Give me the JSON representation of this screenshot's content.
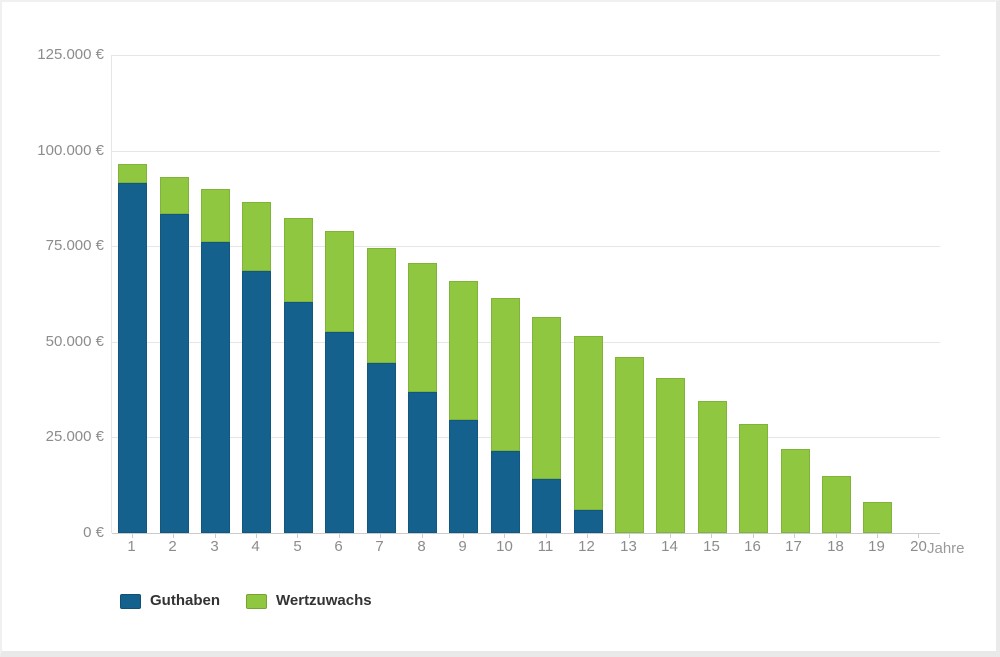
{
  "styling": {
    "guthaben_color": "#15618E",
    "wertzuwachs_color": "#8FC840",
    "axis_label_color": "#8C8C8C",
    "legend_text_color": "#333333",
    "gridline_color": "#E6E6E6",
    "baseline_color": "#CBCBCB",
    "background_color": "#FFFFFF"
  },
  "chart_data": {
    "type": "bar",
    "stacked": true,
    "title": "",
    "xlabel": "Jahre",
    "ylabel": "",
    "grid": true,
    "legend_position": "bottom-left",
    "ylim": [
      0,
      125000
    ],
    "yticks": [
      0,
      25000,
      50000,
      75000,
      100000,
      125000
    ],
    "ytick_labels": [
      "0 €",
      "25.000 €",
      "50.000 €",
      "75.000 €",
      "100.000 €",
      "125.000 €"
    ],
    "categories": [
      "1",
      "2",
      "3",
      "4",
      "5",
      "6",
      "7",
      "8",
      "9",
      "10",
      "11",
      "12",
      "13",
      "14",
      "15",
      "16",
      "17",
      "18",
      "19",
      "20"
    ],
    "series": [
      {
        "name": "Guthaben",
        "color": "#15618E",
        "values": [
          91500,
          83500,
          76000,
          68500,
          60500,
          52500,
          44500,
          37000,
          29500,
          21500,
          14000,
          6000,
          0,
          0,
          0,
          0,
          0,
          0,
          0,
          0
        ]
      },
      {
        "name": "Wertzuwachs",
        "color": "#8FC840",
        "values": [
          5000,
          9500,
          14000,
          18000,
          22000,
          26500,
          30000,
          33500,
          36500,
          40000,
          42500,
          45500,
          46000,
          40500,
          34500,
          28500,
          22000,
          15000,
          8000,
          0
        ]
      }
    ],
    "stack_totals": [
      96500,
      93000,
      90000,
      86500,
      82500,
      79000,
      74500,
      70500,
      66000,
      61500,
      56500,
      51500,
      46000,
      40500,
      34500,
      28500,
      22000,
      15000,
      8000,
      0
    ]
  }
}
